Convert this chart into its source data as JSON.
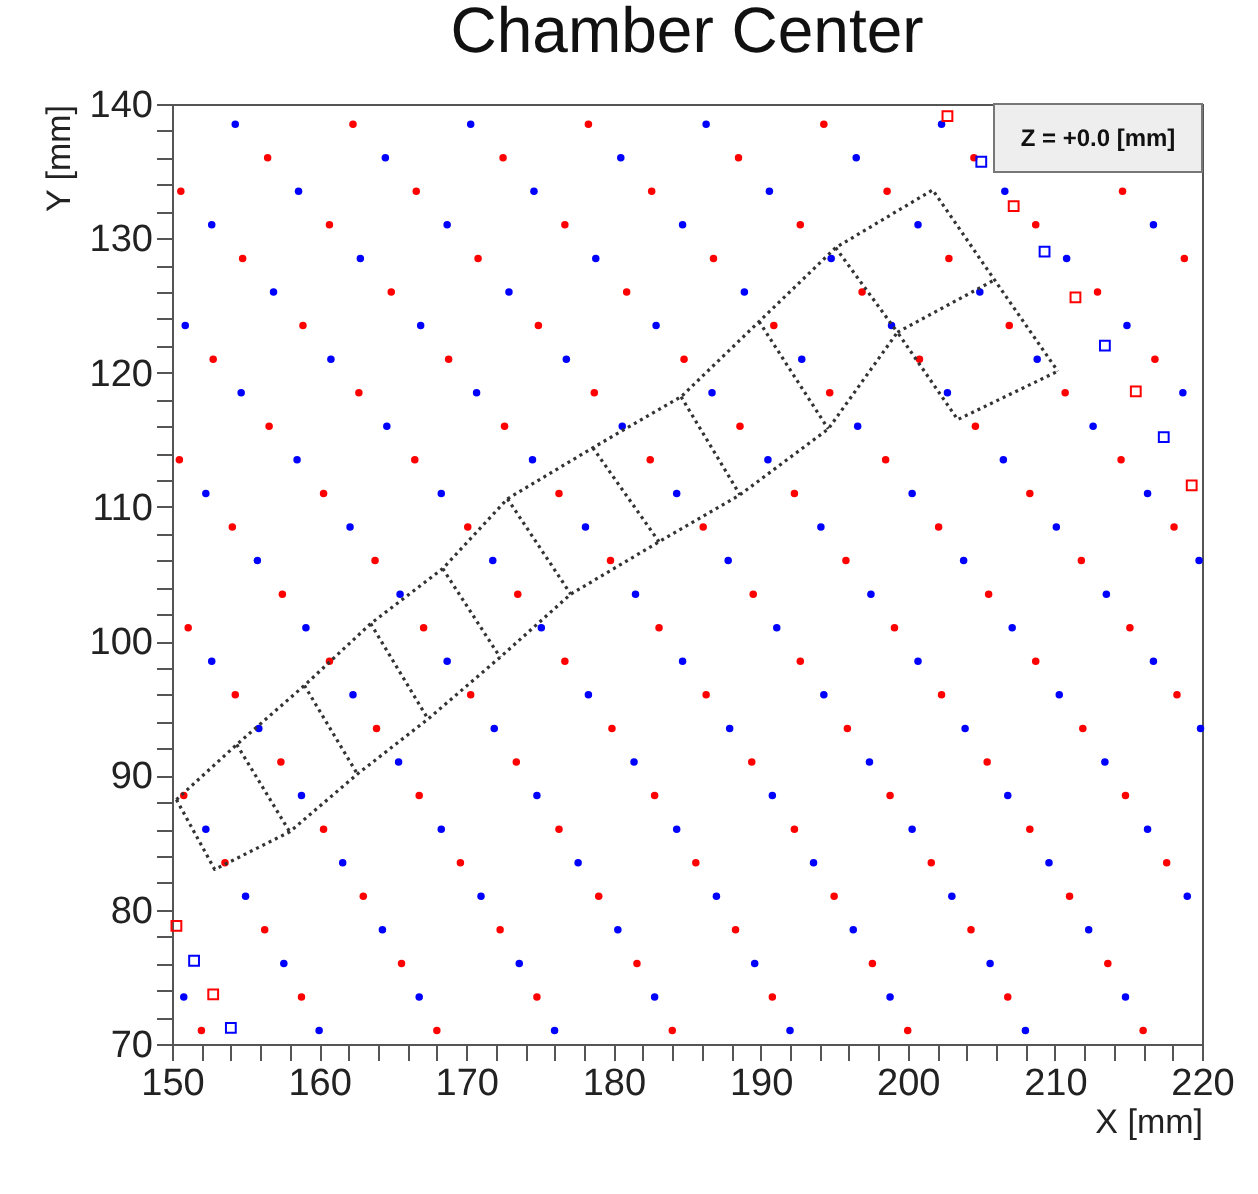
{
  "chart_data": {
    "type": "scatter",
    "title": "Chamber Center",
    "xlabel": "X [mm]",
    "ylabel": "Y [mm]",
    "annotations": [
      "Z = +0.0 [mm]"
    ],
    "xlim": [
      150,
      220
    ],
    "ylim": [
      70,
      140
    ],
    "xticks": [
      150,
      {
        "value": 152,
        "label": null
      },
      {
        "value": 154,
        "label": null
      },
      {
        "value": 156,
        "label": null
      },
      {
        "value": 158,
        "label": null
      },
      160,
      {
        "value": 162,
        "label": null
      },
      {
        "value": 164,
        "label": null
      },
      {
        "value": 166,
        "label": null
      },
      {
        "value": 168,
        "label": null
      },
      170,
      {
        "value": 172,
        "label": null
      },
      {
        "value": 174,
        "label": null
      },
      {
        "value": 176,
        "label": null
      },
      {
        "value": 178,
        "label": null
      },
      180,
      {
        "value": 182,
        "label": null
      },
      {
        "value": 184,
        "label": null
      },
      {
        "value": 186,
        "label": null
      },
      {
        "value": 188,
        "label": null
      },
      190,
      {
        "value": 192,
        "label": null
      },
      {
        "value": 194,
        "label": null
      },
      {
        "value": 196,
        "label": null
      },
      {
        "value": 198,
        "label": null
      },
      200,
      {
        "value": 202,
        "label": null
      },
      {
        "value": 204,
        "label": null
      },
      {
        "value": 206,
        "label": null
      },
      {
        "value": 208,
        "label": null
      },
      210,
      {
        "value": 212,
        "label": null
      },
      {
        "value": 214,
        "label": null
      },
      {
        "value": 216,
        "label": null
      },
      {
        "value": 218,
        "label": null
      },
      220
    ],
    "yticks": [
      70,
      {
        "value": 72,
        "label": null
      },
      {
        "value": 74,
        "label": null
      },
      {
        "value": 76,
        "label": null
      },
      {
        "value": 78,
        "label": null
      },
      80,
      {
        "value": 82,
        "label": null
      },
      {
        "value": 84,
        "label": null
      },
      {
        "value": 86,
        "label": null
      },
      {
        "value": 88,
        "label": null
      },
      90,
      {
        "value": 92,
        "label": null
      },
      {
        "value": 94,
        "label": null
      },
      {
        "value": 96,
        "label": null
      },
      {
        "value": 98,
        "label": null
      },
      100,
      {
        "value": 102,
        "label": null
      },
      {
        "value": 104,
        "label": null
      },
      {
        "value": 106,
        "label": null
      },
      {
        "value": 108,
        "label": null
      },
      110,
      {
        "value": 112,
        "label": null
      },
      {
        "value": 114,
        "label": null
      },
      {
        "value": 116,
        "label": null
      },
      {
        "value": 118,
        "label": null
      },
      120,
      {
        "value": 122,
        "label": null
      },
      {
        "value": 124,
        "label": null
      },
      {
        "value": 126,
        "label": null
      },
      {
        "value": 128,
        "label": null
      },
      130,
      {
        "value": 132,
        "label": null
      },
      {
        "value": 134,
        "label": null
      },
      {
        "value": 136,
        "label": null
      },
      {
        "value": 138,
        "label": null
      },
      140
    ],
    "series": [
      {
        "color": "#ff0000",
        "marker": "circle",
        "x": [
          152.0,
          158.8,
          156.3,
          153.6,
          150.8,
          168,
          165.6,
          163.0,
          160.3,
          157.4,
          154.3,
          151.1,
          174.8,
          172.3,
          169.6,
          166.8,
          163.9,
          160.7,
          157.5,
          154.1,
          150.5,
          184,
          181.6,
          179.0,
          176.3,
          173.4,
          170.3,
          167.1,
          163.8,
          160.3,
          156.6,
          152.8,
          190.8,
          188.3,
          185.6,
          182.8,
          179.9,
          176.7,
          173.5,
          170.1,
          166.5,
          162.7,
          158.9,
          154.8,
          150.6,
          200,
          197.6,
          195.0,
          192.3,
          189.4,
          186.3,
          183.1,
          179.8,
          176.3,
          172.6,
          168.8,
          164.9,
          160.7,
          156.5,
          206.8,
          204.3,
          201.6,
          198.8,
          195.9,
          192.7,
          189.5,
          186.1,
          182.5,
          178.7,
          174.9,
          170.8,
          166.6,
          162.3,
          216,
          213.6,
          211.0,
          208.3,
          205.4,
          202.3,
          199.1,
          195.8,
          192.3,
          188.6,
          184.8,
          180.9,
          176.7,
          172.5,
          217.6,
          214.8,
          211.9,
          208.7,
          205.5,
          202.1,
          198.5,
          194.7,
          190.9,
          186.8,
          182.6,
          178.3,
          218.3,
          215.1,
          211.8,
          208.3,
          204.6,
          200.8,
          196.9,
          192.7,
          188.5,
          218.1,
          214.5,
          210.7,
          206.9,
          202.8,
          198.6,
          194.3,
          216.8,
          212.9,
          208.7,
          204.5,
          218.8,
          214.6
        ],
        "values": [
          71,
          73.5,
          78.5,
          83.5,
          88.5,
          71,
          76,
          81,
          86,
          91,
          96,
          101,
          73.5,
          78.5,
          83.5,
          88.5,
          93.5,
          98.5,
          103.5,
          108.5,
          113.5,
          71,
          76,
          81,
          86,
          91,
          96,
          101,
          106,
          111,
          116,
          121,
          73.5,
          78.5,
          83.5,
          88.5,
          93.5,
          98.5,
          103.5,
          108.5,
          113.5,
          118.5,
          123.5,
          128.5,
          133.5,
          71,
          76,
          81,
          86,
          91,
          96,
          101,
          106,
          111,
          116,
          121,
          126,
          131,
          136,
          73.5,
          78.5,
          83.5,
          88.5,
          93.5,
          98.5,
          103.5,
          108.5,
          113.5,
          118.5,
          123.5,
          128.5,
          133.5,
          138.5,
          71,
          76,
          81,
          86,
          91,
          96,
          101,
          106,
          111,
          116,
          121,
          126,
          131,
          136,
          83.5,
          88.5,
          93.5,
          98.5,
          103.5,
          108.5,
          113.5,
          118.5,
          123.5,
          128.5,
          133.5,
          138.5,
          96,
          101,
          106,
          111,
          116,
          121,
          126,
          131,
          136,
          108.5,
          113.5,
          118.5,
          123.5,
          128.5,
          133.5,
          138.5,
          121,
          126,
          131,
          136,
          128.5,
          133.5
        ]
      },
      {
        "color": "#0000ff",
        "marker": "circle",
        "x": [
          150.8,
          160,
          157.6,
          155.0,
          152.3,
          166.8,
          164.3,
          161.6,
          158.8,
          155.9,
          152.7,
          176,
          173.6,
          171.0,
          168.3,
          165.4,
          162.3,
          159.1,
          155.8,
          152.3,
          182.8,
          180.3,
          177.6,
          174.8,
          171.9,
          168.7,
          165.5,
          162.1,
          158.5,
          154.7,
          150.9,
          192,
          189.6,
          187.0,
          184.3,
          181.4,
          178.3,
          175.1,
          171.8,
          168.3,
          164.6,
          160.8,
          156.9,
          152.7,
          198.8,
          196.3,
          193.6,
          190.8,
          187.9,
          184.7,
          181.5,
          178.1,
          174.5,
          170.7,
          166.9,
          162.8,
          158.6,
          154.3,
          208,
          205.6,
          203.0,
          200.3,
          197.4,
          194.3,
          191.1,
          187.8,
          184.3,
          180.6,
          176.8,
          172.9,
          168.7,
          164.5,
          214.8,
          212.3,
          209.6,
          206.8,
          203.9,
          200.7,
          197.5,
          194.1,
          190.5,
          186.7,
          182.9,
          178.8,
          174.6,
          170.3,
          219.0,
          216.3,
          213.4,
          210.3,
          207.1,
          203.8,
          200.3,
          196.6,
          192.8,
          188.9,
          184.7,
          180.5,
          219.9,
          216.7,
          213.5,
          210.1,
          206.5,
          202.7,
          198.9,
          194.8,
          190.6,
          186.3,
          219.8,
          216.3,
          212.6,
          208.8,
          204.9,
          200.7,
          196.5,
          218.7,
          214.9,
          210.8,
          206.6,
          202.3,
          216.7
        ],
        "values": [
          73.5,
          71,
          76,
          81,
          86,
          73.5,
          78.5,
          83.5,
          88.5,
          93.5,
          98.5,
          71,
          76,
          81,
          86,
          91,
          96,
          101,
          106,
          111,
          73.5,
          78.5,
          83.5,
          88.5,
          93.5,
          98.5,
          103.5,
          108.5,
          113.5,
          118.5,
          123.5,
          71,
          76,
          81,
          86,
          91,
          96,
          101,
          106,
          111,
          116,
          121,
          126,
          131,
          73.5,
          78.5,
          83.5,
          88.5,
          93.5,
          98.5,
          103.5,
          108.5,
          113.5,
          118.5,
          123.5,
          128.5,
          133.5,
          138.5,
          71,
          76,
          81,
          86,
          91,
          96,
          101,
          106,
          111,
          116,
          121,
          126,
          131,
          136,
          73.5,
          78.5,
          83.5,
          88.5,
          93.5,
          98.5,
          103.5,
          108.5,
          113.5,
          118.5,
          123.5,
          128.5,
          133.5,
          138.5,
          81,
          86,
          91,
          96,
          101,
          106,
          111,
          116,
          121,
          126,
          131,
          136,
          93.5,
          98.5,
          103.5,
          108.5,
          113.5,
          118.5,
          123.5,
          128.5,
          133.5,
          138.5,
          106,
          111,
          116,
          121,
          126,
          131,
          136,
          118.5,
          123.5,
          128.5,
          133.5,
          138.5,
          131
        ]
      },
      {
        "color": "#ff0000",
        "marker": "square",
        "x": [
          202.7,
          207.2,
          211.4,
          215.5,
          219.3,
          150.3,
          152.8
        ],
        "values": [
          139.1,
          132.4,
          125.6,
          118.6,
          111.6,
          78.8,
          73.7
        ]
      },
      {
        "color": "#0000ff",
        "marker": "square",
        "x": [
          205.0,
          209.3,
          213.4,
          217.4,
          151.5,
          154.0
        ],
        "values": [
          135.7,
          129.0,
          122.0,
          115.2,
          76.2,
          71.2
        ]
      },
      {
        "type": "line",
        "color": "#333333",
        "line_style": "dotted",
        "x": [
          150.3,
          154.4,
          159.0,
          163.5,
          168.4,
          172.8,
          178.6,
          184.6,
          189.9,
          195.1,
          201.7,
          205.9,
          210.2
        ],
        "values": [
          88.2,
          92.3,
          96.7,
          101.3,
          105.4,
          110.6,
          114.4,
          118.2,
          123.8,
          129.3,
          133.6,
          126.9,
          120.1
        ]
      },
      {
        "type": "line",
        "color": "#333333",
        "line_style": "dotted",
        "x": [
          150.3,
          152.9,
          158.0,
          162.6,
          167.4,
          172.3,
          177.1,
          183.1,
          188.6,
          194.6,
          199.3,
          203.4,
          210.2
        ],
        "values": [
          88.2,
          83.0,
          85.8,
          90.1,
          94.2,
          98.8,
          103.5,
          107.4,
          110.9,
          115.8,
          123.0,
          116.5,
          120.1
        ]
      },
      {
        "type": "line",
        "color": "#333333",
        "line_style": "dotted",
        "x": [
          154.4,
          158.0
        ],
        "values": [
          92.3,
          85.8
        ]
      },
      {
        "type": "line",
        "color": "#333333",
        "line_style": "dotted",
        "x": [
          159.0,
          162.6
        ],
        "values": [
          96.7,
          90.1
        ]
      },
      {
        "type": "line",
        "color": "#333333",
        "line_style": "dotted",
        "x": [
          163.5,
          167.4
        ],
        "values": [
          101.3,
          94.2
        ]
      },
      {
        "type": "line",
        "color": "#333333",
        "line_style": "dotted",
        "x": [
          168.4,
          172.3
        ],
        "values": [
          105.4,
          98.8
        ]
      },
      {
        "type": "line",
        "color": "#333333",
        "line_style": "dotted",
        "x": [
          172.8,
          177.1
        ],
        "values": [
          110.6,
          103.5
        ]
      },
      {
        "type": "line",
        "color": "#333333",
        "line_style": "dotted",
        "x": [
          178.6,
          183.1
        ],
        "values": [
          114.4,
          107.4
        ]
      },
      {
        "type": "line",
        "color": "#333333",
        "line_style": "dotted",
        "x": [
          184.6,
          188.6
        ],
        "values": [
          118.2,
          110.9
        ]
      },
      {
        "type": "line",
        "color": "#333333",
        "line_style": "dotted",
        "x": [
          189.9,
          194.6
        ],
        "values": [
          123.8,
          115.8
        ]
      },
      {
        "type": "line",
        "color": "#333333",
        "line_style": "dotted",
        "x": [
          195.1,
          199.3
        ],
        "values": [
          129.3,
          123.0
        ]
      },
      {
        "type": "line",
        "color": "#333333",
        "line_style": "dotted",
        "x": [
          199.3,
          205.9
        ],
        "values": [
          123.0,
          126.9
        ]
      }
    ]
  }
}
